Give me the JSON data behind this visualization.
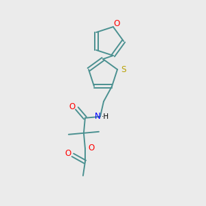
{
  "background_color": "#ebebeb",
  "bond_color": "#4a9090",
  "O_color": "#ff0000",
  "N_color": "#0000ff",
  "S_color": "#b8a000",
  "figsize": [
    3.0,
    3.0
  ],
  "dpi": 100,
  "xlim": [
    0,
    300
  ],
  "ylim": [
    0,
    300
  ]
}
